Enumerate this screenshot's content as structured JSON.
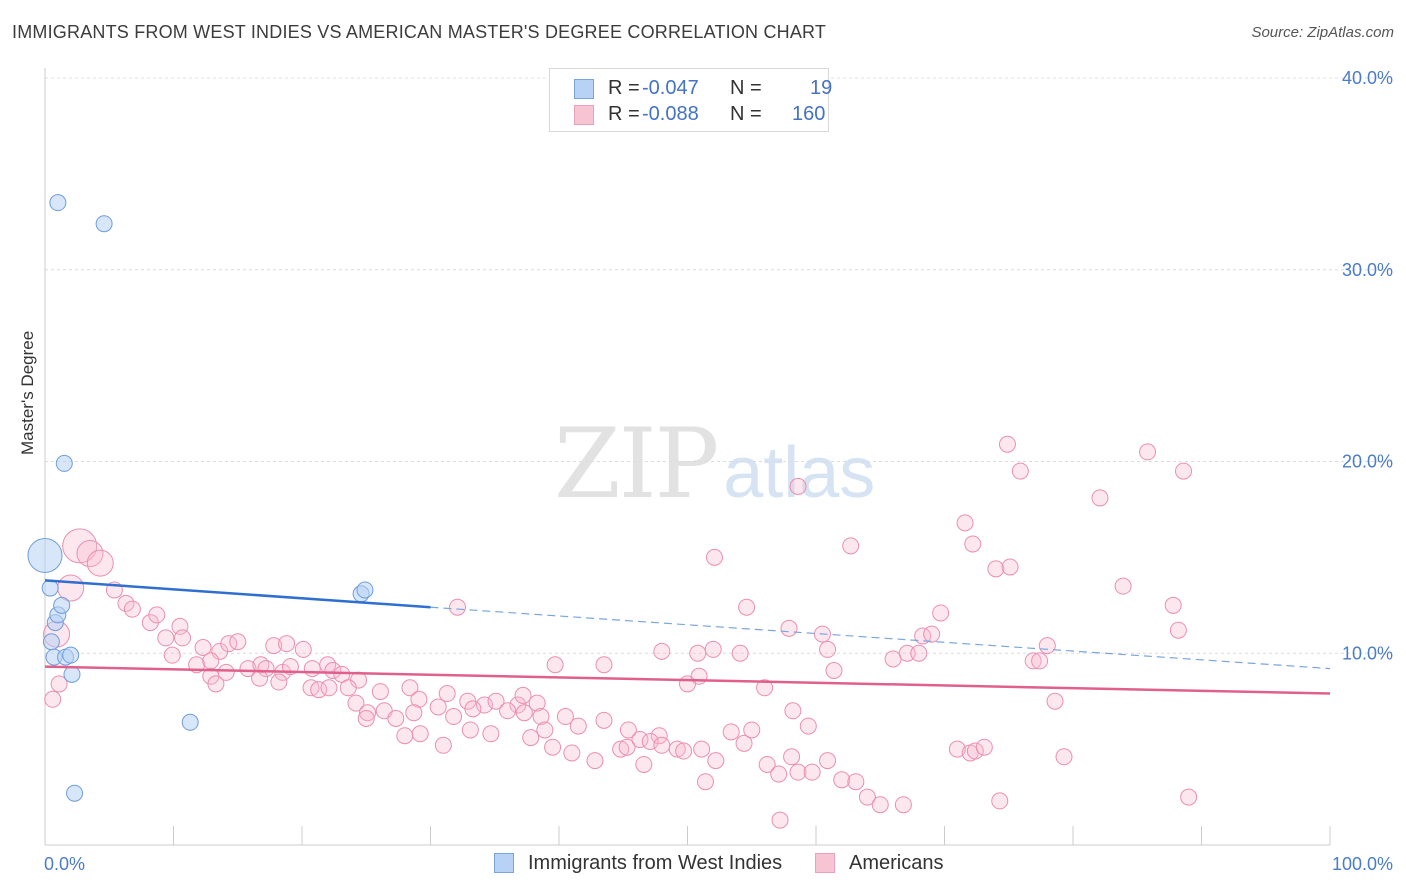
{
  "title": "IMMIGRANTS FROM WEST INDIES VS AMERICAN MASTER'S DEGREE CORRELATION CHART",
  "source": "Source: ZipAtlas.com",
  "watermark": {
    "zip": "ZIP",
    "atlas": "atlas"
  },
  "legend": {
    "rows": [
      {
        "r_label": "R =",
        "r_value": "-0.047",
        "n_label": "N =",
        "n_value": "19"
      },
      {
        "r_label": "R =",
        "r_value": "-0.088",
        "n_label": "N =",
        "n_value": "160"
      }
    ]
  },
  "colors": {
    "blue": "#5b8fd6",
    "blue_fill": "#b7d2f4",
    "pink": "#e37399",
    "pink_fill": "#f7b9cd",
    "axis_text": "#4a7cc9",
    "grid": "#dcdcdc"
  },
  "chart_data": {
    "type": "scatter",
    "xlabel": "",
    "ylabel": "Master's Degree",
    "xlim": [
      0,
      100
    ],
    "ylim": [
      0,
      40
    ],
    "x_tick_labels": [
      "0.0%",
      "100.0%"
    ],
    "y_ticks": [
      10,
      20,
      30,
      40
    ],
    "y_tick_labels": [
      "10.0%",
      "20.0%",
      "30.0%",
      "40.0%"
    ],
    "grid": true,
    "legend_position": "top-center",
    "series": [
      {
        "name": "Immigrants from West Indies",
        "color": "#5b8fd6",
        "points": [
          [
            0.0,
            15.1,
            3
          ],
          [
            0.4,
            13.4,
            1
          ],
          [
            0.8,
            11.6,
            1
          ],
          [
            1.0,
            12.0,
            1
          ],
          [
            1.3,
            12.5,
            1
          ],
          [
            1.0,
            33.5,
            1
          ],
          [
            4.6,
            32.4,
            1
          ],
          [
            1.5,
            19.9,
            1
          ],
          [
            0.5,
            10.6,
            1
          ],
          [
            0.7,
            9.8,
            1
          ],
          [
            1.6,
            9.8,
            1
          ],
          [
            2.0,
            9.9,
            1
          ],
          [
            2.1,
            8.9,
            1
          ],
          [
            11.3,
            6.4,
            1
          ],
          [
            2.3,
            2.7,
            1
          ],
          [
            24.6,
            13.1,
            1
          ],
          [
            24.9,
            13.3,
            1
          ]
        ],
        "trend": {
          "x": [
            0,
            30
          ],
          "y": [
            13.8,
            12.4
          ],
          "dashed_to": [
            100,
            9.2
          ]
        }
      },
      {
        "name": "Americans",
        "color": "#e37399",
        "points": [
          [
            2.7,
            15.6,
            3
          ],
          [
            3.5,
            15.2,
            2
          ],
          [
            4.3,
            14.7,
            2
          ],
          [
            2.0,
            13.4,
            2
          ],
          [
            5.4,
            13.3,
            1
          ],
          [
            6.3,
            12.6,
            1
          ],
          [
            6.8,
            12.3,
            1
          ],
          [
            8.2,
            11.6,
            1
          ],
          [
            8.7,
            12.0,
            1
          ],
          [
            10.5,
            11.4,
            1
          ],
          [
            0.9,
            11.0,
            2
          ],
          [
            9.4,
            10.8,
            1
          ],
          [
            10.7,
            10.8,
            1
          ],
          [
            12.3,
            10.3,
            1
          ],
          [
            13.6,
            10.1,
            1
          ],
          [
            14.3,
            10.5,
            1
          ],
          [
            15.0,
            10.6,
            1
          ],
          [
            17.8,
            10.4,
            1
          ],
          [
            18.8,
            10.5,
            1
          ],
          [
            20.1,
            10.2,
            1
          ],
          [
            9.9,
            9.9,
            1
          ],
          [
            11.8,
            9.4,
            1
          ],
          [
            12.9,
            9.6,
            1
          ],
          [
            14.1,
            9.0,
            1
          ],
          [
            15.8,
            9.2,
            1
          ],
          [
            16.8,
            9.4,
            1
          ],
          [
            17.2,
            9.2,
            1
          ],
          [
            18.5,
            9.0,
            1
          ],
          [
            19.1,
            9.3,
            1
          ],
          [
            20.8,
            9.2,
            1
          ],
          [
            22.0,
            9.4,
            1
          ],
          [
            22.4,
            9.1,
            1
          ],
          [
            23.1,
            8.9,
            1
          ],
          [
            24.4,
            8.6,
            1
          ],
          [
            12.9,
            8.8,
            1
          ],
          [
            13.3,
            8.4,
            1
          ],
          [
            16.7,
            8.7,
            1
          ],
          [
            18.2,
            8.5,
            1
          ],
          [
            20.7,
            8.2,
            1
          ],
          [
            21.3,
            8.1,
            1
          ],
          [
            22.1,
            8.2,
            1
          ],
          [
            23.6,
            8.2,
            1
          ],
          [
            26.1,
            8.0,
            1
          ],
          [
            28.4,
            8.2,
            1
          ],
          [
            29.1,
            7.6,
            1
          ],
          [
            30.6,
            7.2,
            1
          ],
          [
            31.3,
            7.9,
            1
          ],
          [
            32.9,
            7.5,
            1
          ],
          [
            34.2,
            7.3,
            1
          ],
          [
            35.1,
            7.5,
            1
          ],
          [
            36.8,
            7.3,
            1
          ],
          [
            38.3,
            7.4,
            1
          ],
          [
            24.2,
            7.4,
            1
          ],
          [
            25.1,
            6.9,
            1
          ],
          [
            26.4,
            7.0,
            1
          ],
          [
            27.3,
            6.6,
            1
          ],
          [
            28.7,
            6.9,
            1
          ],
          [
            31.8,
            6.7,
            1
          ],
          [
            33.3,
            7.1,
            1
          ],
          [
            36.0,
            7.0,
            1
          ],
          [
            37.3,
            6.9,
            1
          ],
          [
            38.6,
            6.7,
            1
          ],
          [
            40.5,
            6.7,
            1
          ],
          [
            25.0,
            6.6,
            1
          ],
          [
            28.0,
            5.7,
            1
          ],
          [
            29.2,
            5.8,
            1
          ],
          [
            31.0,
            5.2,
            1
          ],
          [
            33.1,
            6.0,
            1
          ],
          [
            34.7,
            5.8,
            1
          ],
          [
            37.8,
            5.6,
            1
          ],
          [
            38.9,
            6.0,
            1
          ],
          [
            41.5,
            6.2,
            1
          ],
          [
            43.5,
            6.5,
            1
          ],
          [
            45.4,
            6.0,
            1
          ],
          [
            47.8,
            5.7,
            1
          ],
          [
            39.5,
            5.1,
            1
          ],
          [
            41.0,
            4.8,
            1
          ],
          [
            42.8,
            4.4,
            1
          ],
          [
            44.8,
            5.0,
            1
          ],
          [
            45.3,
            5.1,
            1
          ],
          [
            46.3,
            5.5,
            1
          ],
          [
            47.1,
            5.4,
            1
          ],
          [
            48.0,
            5.2,
            1
          ],
          [
            49.2,
            5.0,
            1
          ],
          [
            49.7,
            4.9,
            1
          ],
          [
            51.1,
            5.0,
            1
          ],
          [
            52.2,
            4.4,
            1
          ],
          [
            53.4,
            5.9,
            1
          ],
          [
            54.4,
            5.3,
            1
          ],
          [
            55.0,
            6.0,
            1
          ],
          [
            56.2,
            4.2,
            1
          ],
          [
            57.1,
            3.7,
            1
          ],
          [
            58.1,
            4.6,
            1
          ],
          [
            58.6,
            3.8,
            1
          ],
          [
            59.7,
            3.8,
            1
          ],
          [
            60.9,
            4.4,
            1
          ],
          [
            62.0,
            3.4,
            1
          ],
          [
            63.1,
            3.3,
            1
          ],
          [
            64.0,
            2.5,
            1
          ],
          [
            65.0,
            2.1,
            1
          ],
          [
            66.8,
            2.1,
            1
          ],
          [
            46.6,
            4.2,
            1
          ],
          [
            51.4,
            3.3,
            1
          ],
          [
            57.2,
            1.3,
            1
          ],
          [
            74.3,
            2.3,
            1
          ],
          [
            89.0,
            2.5,
            1
          ],
          [
            56.0,
            8.2,
            1
          ],
          [
            50.0,
            8.4,
            1
          ],
          [
            50.9,
            8.8,
            1
          ],
          [
            43.5,
            9.4,
            1
          ],
          [
            50.8,
            10.0,
            1
          ],
          [
            48.0,
            10.1,
            1
          ],
          [
            52.0,
            10.2,
            1
          ],
          [
            54.1,
            10.0,
            1
          ],
          [
            58.2,
            7.0,
            1
          ],
          [
            59.4,
            6.2,
            1
          ],
          [
            60.9,
            10.2,
            1
          ],
          [
            61.4,
            9.1,
            1
          ],
          [
            62.7,
            15.6,
            1
          ],
          [
            66.0,
            9.7,
            1
          ],
          [
            67.1,
            10.0,
            1
          ],
          [
            68.0,
            10.0,
            1
          ],
          [
            68.3,
            10.9,
            1
          ],
          [
            69.0,
            11.0,
            1
          ],
          [
            69.7,
            12.1,
            1
          ],
          [
            71.0,
            5.0,
            1
          ],
          [
            72.0,
            4.8,
            1
          ],
          [
            72.4,
            4.9,
            1
          ],
          [
            73.1,
            5.1,
            1
          ],
          [
            72.2,
            15.7,
            1
          ],
          [
            71.6,
            16.8,
            1
          ],
          [
            74.0,
            14.4,
            1
          ],
          [
            75.1,
            14.5,
            1
          ],
          [
            76.9,
            9.6,
            1
          ],
          [
            77.4,
            9.6,
            1
          ],
          [
            78.0,
            10.4,
            1
          ],
          [
            78.6,
            7.5,
            1
          ],
          [
            79.3,
            4.6,
            1
          ],
          [
            74.9,
            20.9,
            1
          ],
          [
            75.9,
            19.5,
            1
          ],
          [
            82.1,
            18.1,
            1
          ],
          [
            83.9,
            13.5,
            1
          ],
          [
            85.8,
            20.5,
            1
          ],
          [
            87.8,
            12.5,
            1
          ],
          [
            88.6,
            19.5,
            1
          ],
          [
            88.2,
            11.2,
            1
          ],
          [
            58.6,
            18.7,
            1
          ],
          [
            52.1,
            15.0,
            1
          ],
          [
            54.6,
            12.4,
            1
          ],
          [
            57.9,
            11.3,
            1
          ],
          [
            60.5,
            11.0,
            1
          ],
          [
            0.6,
            7.6,
            1
          ],
          [
            1.1,
            8.4,
            1
          ],
          [
            32.1,
            12.4,
            1
          ],
          [
            37.2,
            7.8,
            1
          ],
          [
            39.7,
            9.4,
            1
          ]
        ],
        "trend": {
          "x": [
            0,
            100
          ],
          "y": [
            9.3,
            7.9
          ]
        }
      }
    ]
  },
  "bottom_legend": [
    {
      "label": "Immigrants from West Indies"
    },
    {
      "label": "Americans"
    }
  ]
}
